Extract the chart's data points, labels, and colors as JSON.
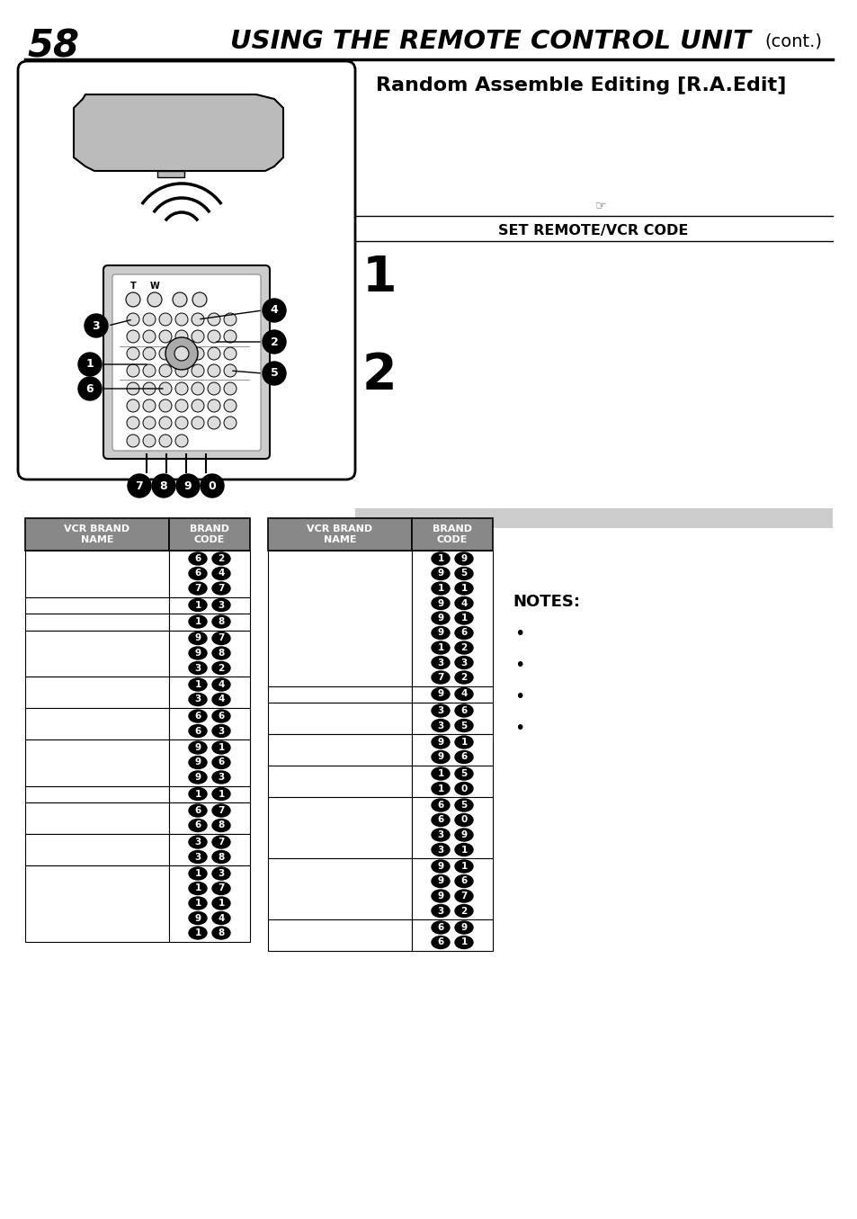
{
  "page_number": "58",
  "header_title": "USING THE REMOTE CONTROL UNIT",
  "header_cont": "(cont.)",
  "section_title": "Random Assemble Editing [R.A.Edit]",
  "step1_num": "1",
  "step2_num": "2",
  "set_remote_label": "SET REMOTE/VCR CODE",
  "notes_label": "NOTES:",
  "table1_headers": [
    "VCR BRAND\nNAME",
    "BRAND\nCODE"
  ],
  "table2_headers": [
    "VCR BRAND\nNAME",
    "BRAND\nCODE"
  ],
  "t1_codes": [
    [
      "6",
      "2"
    ],
    [
      "6",
      "4"
    ],
    [
      "7",
      "7"
    ],
    [
      "1",
      "3"
    ],
    [
      "1",
      "8"
    ],
    [
      "9",
      "7"
    ],
    [
      "9",
      "8"
    ],
    [
      "3",
      "2"
    ],
    [
      "1",
      "4"
    ],
    [
      "3",
      "4"
    ],
    [
      "6",
      "6"
    ],
    [
      "6",
      "3"
    ],
    [
      "9",
      "1"
    ],
    [
      "9",
      "6"
    ],
    [
      "9",
      "3"
    ],
    [
      "1",
      "1"
    ],
    [
      "6",
      "7"
    ],
    [
      "6",
      "8"
    ],
    [
      "3",
      "7"
    ],
    [
      "3",
      "8"
    ],
    [
      "1",
      "3"
    ],
    [
      "1",
      "7"
    ],
    [
      "1",
      "1"
    ],
    [
      "9",
      "4"
    ],
    [
      "1",
      "8"
    ]
  ],
  "t1_groups": [
    3,
    1,
    1,
    3,
    2,
    2,
    3,
    1,
    2,
    2,
    5
  ],
  "t2_codes": [
    [
      "1",
      "9"
    ],
    [
      "9",
      "5"
    ],
    [
      "1",
      "1"
    ],
    [
      "9",
      "4"
    ],
    [
      "9",
      "1"
    ],
    [
      "9",
      "6"
    ],
    [
      "1",
      "2"
    ],
    [
      "3",
      "3"
    ],
    [
      "7",
      "2"
    ],
    [
      "9",
      "4"
    ],
    [
      "3",
      "6"
    ],
    [
      "3",
      "5"
    ],
    [
      "9",
      "1"
    ],
    [
      "9",
      "6"
    ],
    [
      "1",
      "5"
    ],
    [
      "1",
      "0"
    ],
    [
      "6",
      "5"
    ],
    [
      "6",
      "0"
    ],
    [
      "3",
      "9"
    ],
    [
      "3",
      "1"
    ],
    [
      "9",
      "1"
    ],
    [
      "9",
      "6"
    ],
    [
      "9",
      "7"
    ],
    [
      "3",
      "2"
    ],
    [
      "6",
      "9"
    ],
    [
      "6",
      "1"
    ]
  ],
  "t2_groups": [
    9,
    1,
    2,
    2,
    2,
    4,
    4,
    2
  ],
  "bg_color": "#ffffff"
}
